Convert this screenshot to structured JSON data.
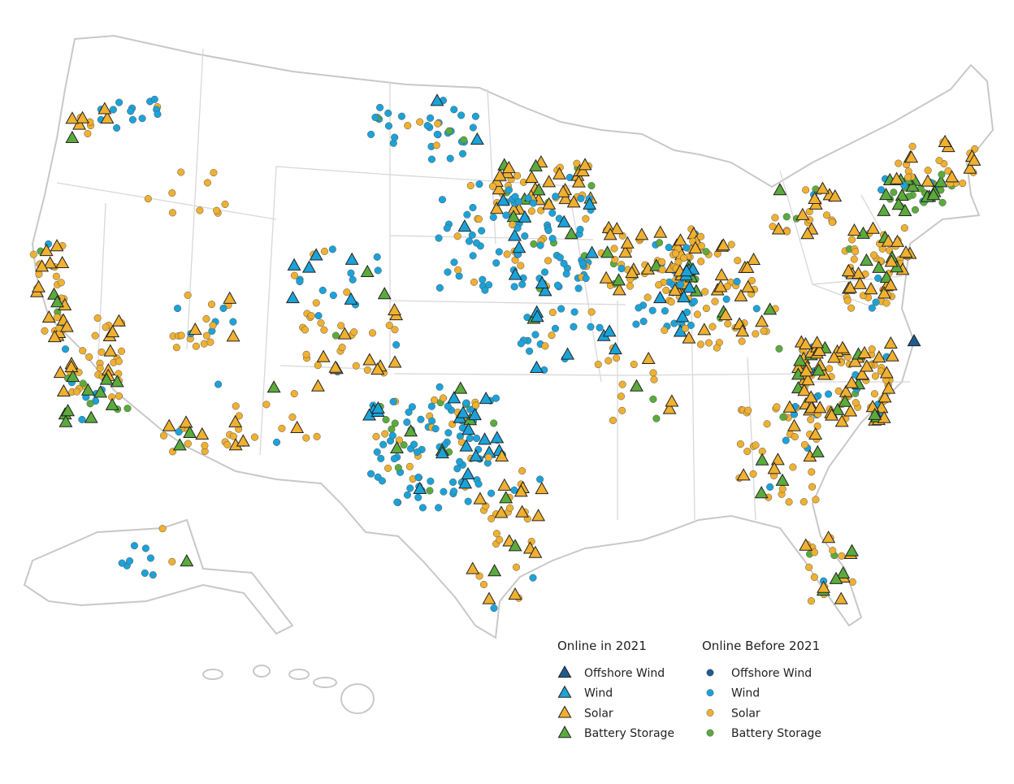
{
  "legend": {
    "groups": [
      {
        "title": "Online in 2021",
        "items": [
          "Offshore Wind",
          "Wind",
          "Solar",
          "Battery Storage"
        ]
      },
      {
        "title": "Online Before 2021",
        "items": [
          "Offshore Wind",
          "Wind",
          "Solar",
          "Battery Storage"
        ]
      }
    ]
  }
}
